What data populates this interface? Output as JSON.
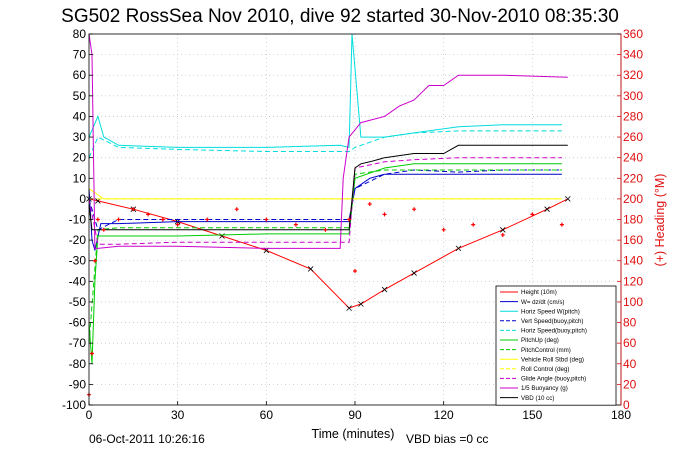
{
  "chart_data": {
    "type": "line",
    "title": "SG502 RossSea Nov 2010, dive 92 started 30-Nov-2010 08:35:30",
    "xlabel": "Time (minutes)",
    "ylabel": "",
    "y2label": "(+) Heading (°M)",
    "xlim": [
      0,
      180
    ],
    "ylim": [
      -100,
      80
    ],
    "y2lim": [
      0,
      360
    ],
    "xticks": [
      "0",
      "30",
      "60",
      "90",
      "120",
      "150",
      "180"
    ],
    "yticks": [
      "80",
      "70",
      "60",
      "50",
      "40",
      "30",
      "20",
      "10",
      "0",
      "-10",
      "-20",
      "-30",
      "-40",
      "-50",
      "-60",
      "-70",
      "-80",
      "-90",
      "-100"
    ],
    "y2ticks": [
      "360",
      "340",
      "320",
      "300",
      "280",
      "260",
      "240",
      "220",
      "200",
      "180",
      "160",
      "140",
      "120",
      "100",
      "80",
      "60",
      "40",
      "20",
      "0"
    ],
    "grid": true,
    "legend_position": "bottom-right",
    "footer_left": "06-Oct-2011 10:26:16",
    "footer_right": "VBD bias =0 cc",
    "series": [
      {
        "name": "Height (10m)",
        "color": "#ff0000",
        "style": "solid",
        "x": [
          0,
          3,
          15,
          30,
          45,
          60,
          75,
          88,
          92,
          100,
          110,
          125,
          140,
          155,
          162
        ],
        "y": [
          0,
          -1,
          -5,
          -11,
          -18,
          -25,
          -34,
          -53,
          -51,
          -44,
          -36,
          -24,
          -15,
          -5,
          0
        ]
      },
      {
        "name": "W= dz/dt (cm/s)",
        "color": "#0000cc",
        "style": "solid",
        "x": [
          0,
          1,
          2,
          4,
          10,
          30,
          60,
          88,
          90,
          95,
          100,
          110,
          125,
          140,
          160
        ],
        "y": [
          5,
          -20,
          -25,
          -12,
          -12,
          -11,
          -11,
          -11,
          5,
          10,
          12,
          12,
          12,
          12,
          12
        ]
      },
      {
        "name": "Horiz Speed W(pitch)",
        "color": "#00dddd",
        "style": "solid",
        "x": [
          0,
          3,
          5,
          10,
          30,
          60,
          85,
          88,
          89,
          92,
          100,
          110,
          125,
          140,
          160
        ],
        "y": [
          30,
          40,
          30,
          26,
          25,
          25,
          26,
          25,
          80,
          30,
          30,
          32,
          35,
          36,
          36
        ]
      },
      {
        "name": "Vert Speed(buoy,pitch)",
        "color": "#0000cc",
        "style": "dashed",
        "x": [
          0,
          3,
          10,
          30,
          60,
          88,
          90,
          100,
          110,
          125,
          140,
          160
        ],
        "y": [
          0,
          -15,
          -10,
          -10,
          -10,
          -10,
          5,
          12,
          14,
          13,
          14,
          14
        ]
      },
      {
        "name": "Horiz Speed(buoy,pitch)",
        "color": "#00dddd",
        "style": "dashed",
        "x": [
          0,
          3,
          10,
          30,
          60,
          88,
          90,
          100,
          110,
          125,
          140,
          160
        ],
        "y": [
          20,
          30,
          25,
          24,
          23,
          23,
          25,
          30,
          32,
          33,
          33,
          33
        ]
      },
      {
        "name": "PitchUp (deg)",
        "color": "#00cc00",
        "style": "solid",
        "x": [
          0,
          1,
          2,
          3,
          10,
          30,
          60,
          88,
          90,
          100,
          110,
          125,
          140,
          160
        ],
        "y": [
          -60,
          -80,
          -40,
          -18,
          -18,
          -18,
          -17,
          -17,
          10,
          15,
          17,
          17,
          17,
          17
        ]
      },
      {
        "name": "PitchControl (mm)",
        "color": "#00cc00",
        "style": "dashed",
        "x": [
          0,
          3,
          10,
          30,
          60,
          88,
          90,
          100,
          110,
          125,
          140,
          160
        ],
        "y": [
          -70,
          -15,
          -14,
          -14,
          -14,
          -14,
          12,
          14,
          14,
          14,
          14,
          14
        ]
      },
      {
        "name": "Vehicle Roll Stbd (deg)",
        "color": "#ffff00",
        "style": "solid",
        "x": [
          0,
          5,
          10,
          20,
          30,
          40,
          50,
          60,
          70,
          80,
          88,
          90,
          100,
          110,
          125,
          140,
          160
        ],
        "y": [
          5,
          0,
          0,
          0,
          0,
          0,
          0,
          0,
          0,
          0,
          0,
          0,
          0,
          0,
          0,
          0,
          0
        ]
      },
      {
        "name": "Roll Control (deg)",
        "color": "#ffff00",
        "style": "dashed",
        "x": [
          0,
          10,
          30,
          60,
          88,
          90,
          100,
          110,
          125,
          140,
          160
        ],
        "y": [
          0,
          0,
          0,
          0,
          0,
          0,
          0,
          0,
          0,
          0,
          0
        ]
      },
      {
        "name": "Glide Angle (buoy,pitch)",
        "color": "#cc00cc",
        "style": "dashed",
        "x": [
          0,
          3,
          10,
          30,
          60,
          88,
          90,
          100,
          110,
          125,
          140,
          160
        ],
        "y": [
          0,
          -22,
          -22,
          -21,
          -21,
          -21,
          15,
          18,
          19,
          20,
          20,
          20
        ]
      },
      {
        "name": "1/5 Buoyancy (g)",
        "color": "#cc00cc",
        "style": "solid",
        "x": [
          0,
          1,
          2,
          3,
          10,
          30,
          60,
          85,
          86,
          87,
          88,
          92,
          100,
          105,
          110,
          115,
          120,
          125,
          140,
          162
        ],
        "y": [
          80,
          70,
          -24,
          -24,
          -23,
          -23,
          -24,
          -24,
          10,
          20,
          30,
          37,
          40,
          45,
          48,
          55,
          55,
          60,
          60,
          59
        ]
      },
      {
        "name": "VBD (10 cc)",
        "color": "#000000",
        "style": "solid",
        "x": [
          0,
          1,
          10,
          30,
          60,
          88,
          90,
          92,
          95,
          100,
          110,
          120,
          125,
          140,
          162
        ],
        "y": [
          -3,
          -15,
          -15,
          -15,
          -15,
          -15,
          15,
          17,
          18,
          20,
          22,
          22,
          26,
          26,
          26
        ]
      },
      {
        "name": "Heading",
        "color": "#ff0000",
        "style": "markers",
        "axis": "right",
        "x": [
          0,
          1,
          2,
          3,
          5,
          10,
          15,
          20,
          25,
          30,
          40,
          50,
          60,
          70,
          80,
          88,
          90,
          95,
          100,
          110,
          120,
          130,
          140,
          150,
          160
        ],
        "y": [
          10,
          50,
          140,
          180,
          170,
          180,
          190,
          185,
          180,
          175,
          180,
          190,
          180,
          175,
          170,
          180,
          130,
          195,
          185,
          190,
          170,
          175,
          165,
          185,
          175
        ]
      }
    ]
  }
}
